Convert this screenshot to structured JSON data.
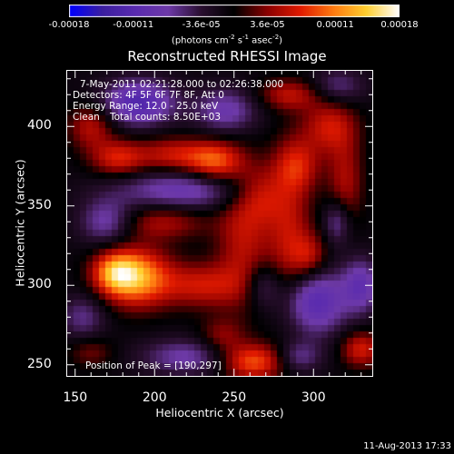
{
  "colorbar": {
    "tick_labels": [
      "-0.00018",
      "-0.00011",
      "-3.6e-05",
      "3.6e-05",
      "0.00011",
      "0.00018"
    ],
    "tick_values": [
      -0.00018,
      -0.00011,
      -3.6e-05,
      3.6e-05,
      0.00011,
      0.00018
    ],
    "range": [
      -0.00018,
      0.00018
    ],
    "unit_label": "(photons cm",
    "unit_exp1": "-2",
    "unit_mid": " s",
    "unit_exp2": "-1",
    "unit_mid2": " asec",
    "unit_exp3": "-2",
    "unit_end": ")",
    "colors": [
      "#0000ff",
      "#3c1fa0",
      "#5a2bb0",
      "#6e3aa8",
      "#2a0f30",
      "#000000",
      "#8a0000",
      "#e01a00",
      "#ff7a10",
      "#ffd030",
      "#ffffff"
    ]
  },
  "chart_data": {
    "type": "heatmap",
    "title": "Reconstructed RHESSI Image",
    "xlabel": "Heliocentric X (arcsec)",
    "ylabel": "Heliocentric Y (arcsec)",
    "xlim": [
      145,
      337
    ],
    "ylim": [
      243,
      435
    ],
    "x_ticks": [
      150,
      200,
      250,
      300
    ],
    "y_ticks": [
      250,
      300,
      350,
      400
    ],
    "annotations": {
      "time_range": "7-May-2011 02:21:28.000 to 02:26:38.000",
      "detectors": "Detectors: 4F 5F 6F 7F 8F, Att 0",
      "energy_range": "Energy Range: 12.0 - 25.0 keV",
      "clean": "Clean",
      "total_counts": "Total counts: 8.50E+03",
      "peak": "Position of Peak = [190,297]"
    },
    "peak_position": [
      190,
      297
    ],
    "sources": [
      {
        "x": 189,
        "y": 305,
        "amp": 1.0,
        "sx": 15,
        "sy": 13
      },
      {
        "x": 175,
        "y": 308,
        "amp": 0.75,
        "sx": 10,
        "sy": 9
      },
      {
        "x": 238,
        "y": 378,
        "amp": 0.72,
        "sx": 12,
        "sy": 9
      },
      {
        "x": 212,
        "y": 382,
        "amp": 0.55,
        "sx": 16,
        "sy": 8
      },
      {
        "x": 177,
        "y": 380,
        "amp": 0.6,
        "sx": 12,
        "sy": 8
      },
      {
        "x": 262,
        "y": 252,
        "amp": 0.8,
        "sx": 14,
        "sy": 8
      },
      {
        "x": 230,
        "y": 300,
        "amp": 0.55,
        "sx": 18,
        "sy": 10
      },
      {
        "x": 205,
        "y": 340,
        "amp": 0.45,
        "sx": 20,
        "sy": 8
      },
      {
        "x": 256,
        "y": 330,
        "amp": 0.5,
        "sx": 12,
        "sy": 30
      },
      {
        "x": 285,
        "y": 330,
        "amp": 0.5,
        "sx": 10,
        "sy": 35
      },
      {
        "x": 298,
        "y": 318,
        "amp": 0.45,
        "sx": 8,
        "sy": 10
      },
      {
        "x": 310,
        "y": 400,
        "amp": 0.55,
        "sx": 12,
        "sy": 12
      },
      {
        "x": 285,
        "y": 420,
        "amp": 0.5,
        "sx": 14,
        "sy": 7
      },
      {
        "x": 320,
        "y": 365,
        "amp": 0.45,
        "sx": 8,
        "sy": 20
      },
      {
        "x": 330,
        "y": 260,
        "amp": 0.6,
        "sx": 9,
        "sy": 8
      },
      {
        "x": 160,
        "y": 400,
        "amp": 0.5,
        "sx": 10,
        "sy": 10
      },
      {
        "x": 160,
        "y": 258,
        "amp": 0.3,
        "sx": 10,
        "sy": 7
      },
      {
        "x": 242,
        "y": 268,
        "amp": 0.35,
        "sx": 10,
        "sy": 8
      },
      {
        "x": 290,
        "y": 375,
        "amp": 0.5,
        "sx": 10,
        "sy": 12
      },
      {
        "x": 268,
        "y": 357,
        "amp": 0.4,
        "sx": 10,
        "sy": 12
      },
      {
        "x": 190,
        "y": 415,
        "amp": -0.85,
        "sx": 16,
        "sy": 10
      },
      {
        "x": 218,
        "y": 360,
        "amp": -0.6,
        "sx": 30,
        "sy": 9
      },
      {
        "x": 300,
        "y": 290,
        "amp": -0.8,
        "sx": 15,
        "sy": 15
      },
      {
        "x": 330,
        "y": 300,
        "amp": -0.6,
        "sx": 8,
        "sy": 12
      },
      {
        "x": 315,
        "y": 340,
        "amp": -0.5,
        "sx": 6,
        "sy": 10
      },
      {
        "x": 220,
        "y": 255,
        "amp": -0.5,
        "sx": 20,
        "sy": 8
      },
      {
        "x": 245,
        "y": 410,
        "amp": -0.55,
        "sx": 14,
        "sy": 10
      },
      {
        "x": 170,
        "y": 340,
        "amp": -0.55,
        "sx": 12,
        "sy": 10
      },
      {
        "x": 290,
        "y": 255,
        "amp": -0.45,
        "sx": 10,
        "sy": 7
      },
      {
        "x": 268,
        "y": 300,
        "amp": -0.4,
        "sx": 8,
        "sy": 10
      },
      {
        "x": 315,
        "y": 425,
        "amp": -0.4,
        "sx": 12,
        "sy": 8
      },
      {
        "x": 155,
        "y": 280,
        "amp": -0.4,
        "sx": 10,
        "sy": 10
      }
    ]
  },
  "footer": {
    "timestamp": "11-Aug-2013 17:33"
  }
}
